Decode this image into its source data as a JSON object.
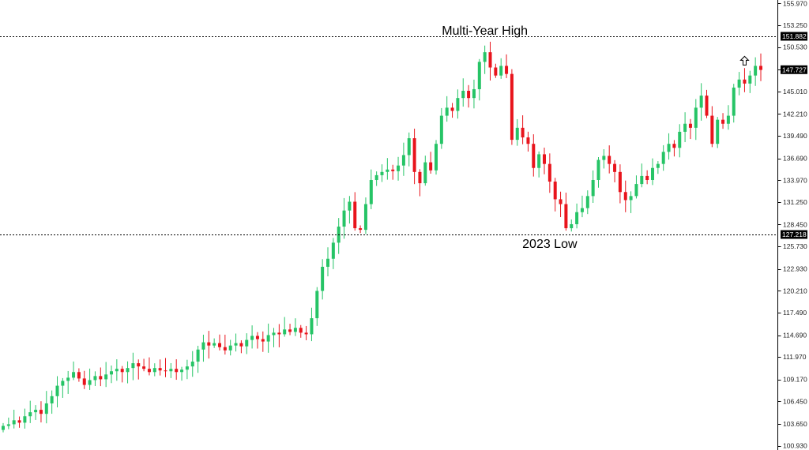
{
  "chart_data": {
    "type": "candlestick",
    "y_axis_side": "right",
    "ylim": [
      100.4,
      156.4
    ],
    "y_ticks": [
      "155.970",
      "153.250",
      "150.530",
      "147.727",
      "145.010",
      "142.210",
      "139.490",
      "136.690",
      "133.970",
      "131.250",
      "128.450",
      "125.730",
      "122.930",
      "120.210",
      "117.490",
      "114.690",
      "111.970",
      "109.170",
      "106.450",
      "103.650",
      "100.930"
    ],
    "price_badges": [
      {
        "label": "151.882",
        "value": 151.882,
        "color": "#000000"
      },
      {
        "label": "147.727",
        "value": 147.727,
        "color": "#000000"
      },
      {
        "label": "127.218",
        "value": 127.218,
        "color": "#000000"
      }
    ],
    "horizontal_lines": [
      {
        "value": 151.882,
        "style": "dotted"
      },
      {
        "value": 127.218,
        "style": "dotted"
      }
    ],
    "annotations": [
      {
        "text": "Multi-Year High",
        "value": 151.882,
        "candle_index": 89,
        "position": "above"
      },
      {
        "text": "2023 Low",
        "value": 127.218,
        "candle_index": 101,
        "position": "below"
      }
    ],
    "arrow": {
      "icon": "up-arrow-icon",
      "value": 148.8,
      "candle_index": 137
    },
    "colors": {
      "up": "#26c466",
      "down": "#e8141c",
      "grid_line": "#000000",
      "axis": "#000000"
    },
    "closes": [
      103.4,
      103.6,
      104.1,
      103.8,
      104.6,
      105.1,
      105.4,
      104.9,
      106.2,
      107.1,
      108.4,
      109.0,
      109.4,
      110.1,
      109.3,
      108.5,
      109.1,
      109.6,
      109.2,
      109.8,
      110.2,
      110.5,
      110.1,
      110.6,
      111.2,
      110.8,
      110.5,
      110.1,
      110.6,
      110.3,
      110.2,
      110.5,
      110.1,
      110.4,
      110.8,
      111.4,
      112.9,
      113.8,
      113.4,
      113.7,
      113.2,
      112.8,
      113.4,
      113.7,
      113.3,
      114.1,
      114.6,
      114.2,
      113.9,
      114.7,
      115.0,
      114.8,
      115.4,
      115.1,
      115.6,
      115.0,
      114.8,
      116.8,
      120.2,
      123.2,
      124.2,
      126.2,
      128.2,
      130.2,
      131.3,
      128.0,
      127.8,
      131.0,
      134.0,
      134.6,
      135.0,
      135.3,
      135.1,
      135.8,
      137.1,
      139.2,
      135.0,
      133.6,
      136.2,
      135.2,
      138.5,
      142.0,
      143.0,
      142.6,
      144.2,
      145.1,
      144.2,
      145.3,
      148.7,
      149.9,
      148.0,
      147.0,
      148.2,
      147.2,
      139.0,
      140.5,
      139.3,
      138.5,
      135.5,
      137.2,
      136.0,
      133.8,
      131.6,
      131.0,
      128.0,
      128.5,
      130.0,
      130.5,
      132.0,
      134.0,
      136.5,
      137.0,
      136.0,
      135.0,
      132.5,
      131.5,
      132.0,
      133.5,
      134.5,
      134.0,
      135.5,
      136.0,
      137.5,
      138.5,
      138.0,
      140.0,
      141.0,
      140.5,
      143.0,
      144.5,
      142.0,
      138.5,
      141.5,
      141.0,
      142.0,
      145.5,
      146.5,
      146.0,
      147.0,
      148.2,
      147.7
    ]
  }
}
